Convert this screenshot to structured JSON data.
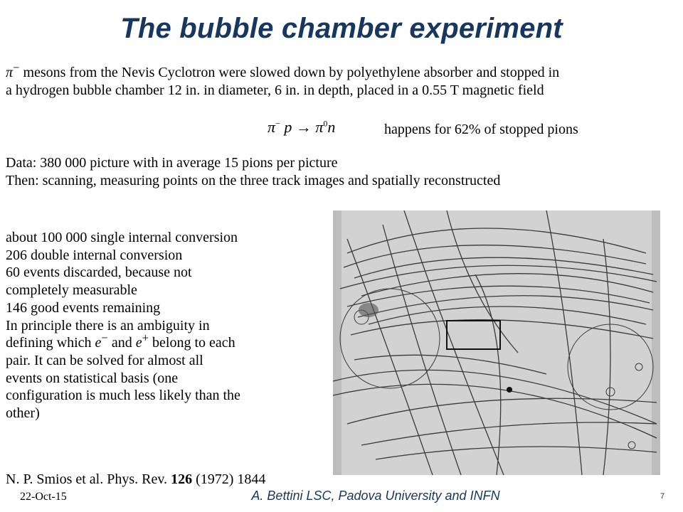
{
  "title": "The bubble chamber experiment",
  "intro": {
    "pi_symbol": "π",
    "pi_charge": "−",
    "line1": "mesons from the Nevis Cyclotron were slowed down by polyethylene absorber and stopped in",
    "line2": "a hydrogen bubble chamber 12 in. in diameter, 6 in. in depth, placed in  a 0.55 T magnetic field"
  },
  "reaction": {
    "pi": "π",
    "minus": "−",
    "p": "p",
    "arrow": "→",
    "pi0": "π",
    "zero": "0",
    "n": "n",
    "note": "happens for 62% of stopped pions"
  },
  "data_lines": {
    "line1": "Data: 380 000 picture with in average 15 pions per picture",
    "line2": "Then: scanning, measuring points on the three track images and spatially reconstructed"
  },
  "results": {
    "l1": "about 100 000 single internal conversion",
    "l2": "206 double internal conversion",
    "l3": "60 events discarded, because not",
    "l4": "completely measurable",
    "l5": "146 good events remaining",
    "l6": "In principle there is an ambiguity in",
    "l7_a": "defining which ",
    "l7_e1": "e",
    "l7_s1": "−",
    "l7_b": " and ",
    "l7_e2": "e",
    "l7_s2": "+",
    "l7_c": " belong to each",
    "l8": "pair. It can be solved for almost all",
    "l9": "events on statistical basis (one",
    "l10": "configuration is much less likely than the",
    "l11": "other)"
  },
  "reference": {
    "authors": "N. P. Smios et al. Phys. Rev. ",
    "volume": "126",
    "rest": " (1972) 1844"
  },
  "footer": {
    "date": "22-Oct-15",
    "author": "A. Bettini LSC, Padova University and INFN",
    "page": "7"
  }
}
